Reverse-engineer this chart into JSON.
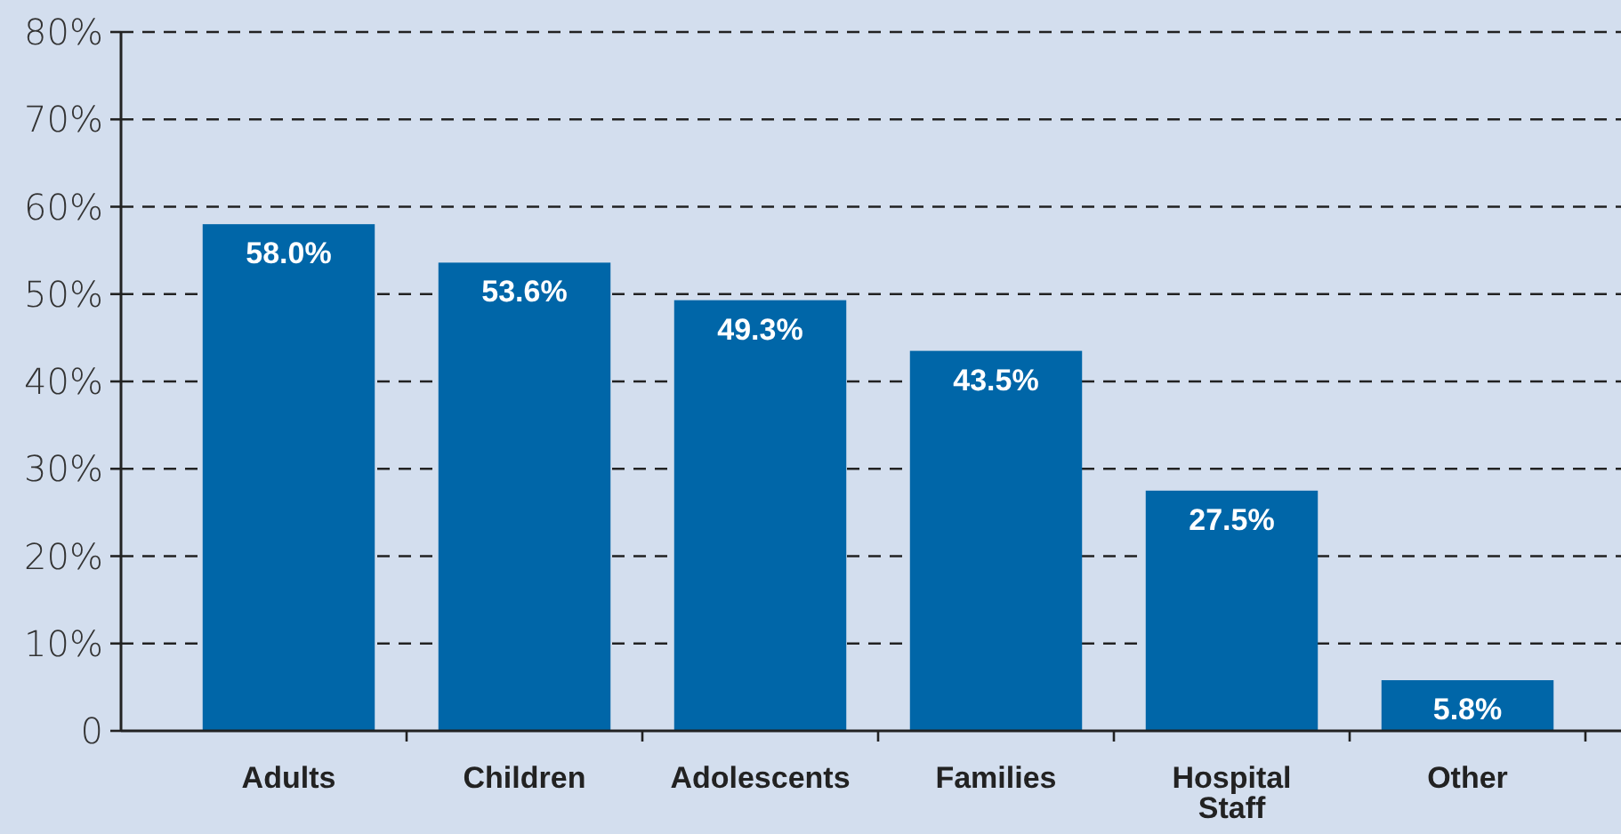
{
  "chart_data": {
    "type": "bar",
    "categories": [
      "Adults",
      "Children",
      "Adolescents",
      "Families",
      "Hospital Staff",
      "Other"
    ],
    "values": [
      58.0,
      53.6,
      49.3,
      43.5,
      27.5,
      5.8
    ],
    "color": "#0066a8",
    "value_labels": [
      "58.0%",
      "53.6%",
      "49.3%",
      "43.5%",
      "27.5%",
      "5.8%"
    ],
    "ylim": [
      0,
      80
    ],
    "yticks": [
      {
        "value": 0,
        "label": "0"
      },
      {
        "value": 10,
        "label": "10%"
      },
      {
        "value": 20,
        "label": "20%"
      },
      {
        "value": 30,
        "label": "30%"
      },
      {
        "value": 40,
        "label": "40%"
      },
      {
        "value": 50,
        "label": "50%"
      },
      {
        "value": 60,
        "label": "60%"
      },
      {
        "value": 70,
        "label": "70%"
      },
      {
        "value": 80,
        "label": "80%"
      }
    ],
    "grid": "y"
  }
}
